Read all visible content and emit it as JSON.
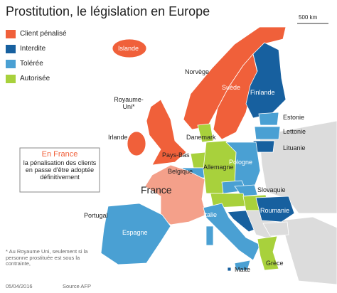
{
  "title": "Prostitution, le législation en Europe",
  "scale": "500 km",
  "legend": [
    {
      "label": "Client pénalisé",
      "color": "#f0603a"
    },
    {
      "label": "Interdite",
      "color": "#17609f"
    },
    {
      "label": "Tolérée",
      "color": "#4aa0d3"
    },
    {
      "label": "Autorisée",
      "color": "#a8d13c"
    }
  ],
  "countries": [
    "Islande",
    "Norvège",
    "Suède",
    "Finlande",
    "Royaume-Uni*",
    "Irlande",
    "Danemark",
    "Estonie",
    "Lettonie",
    "Lituanie",
    "Pays-Bas",
    "Belgique",
    "Allemagne",
    "Pologne",
    "France",
    "Slovaquie",
    "Roumanie",
    "Portugal",
    "Espagne",
    "Italie",
    "Grèce",
    "Malte"
  ],
  "callout": {
    "title": "En France",
    "text": "la pénalisation des clients en passe d'être adoptée définitivement"
  },
  "footnote": "* Au Royaume Uni, seulement si la personne prostituée est sous la contrainte,",
  "date": "05/04/2016",
  "source": "Source AFP"
}
